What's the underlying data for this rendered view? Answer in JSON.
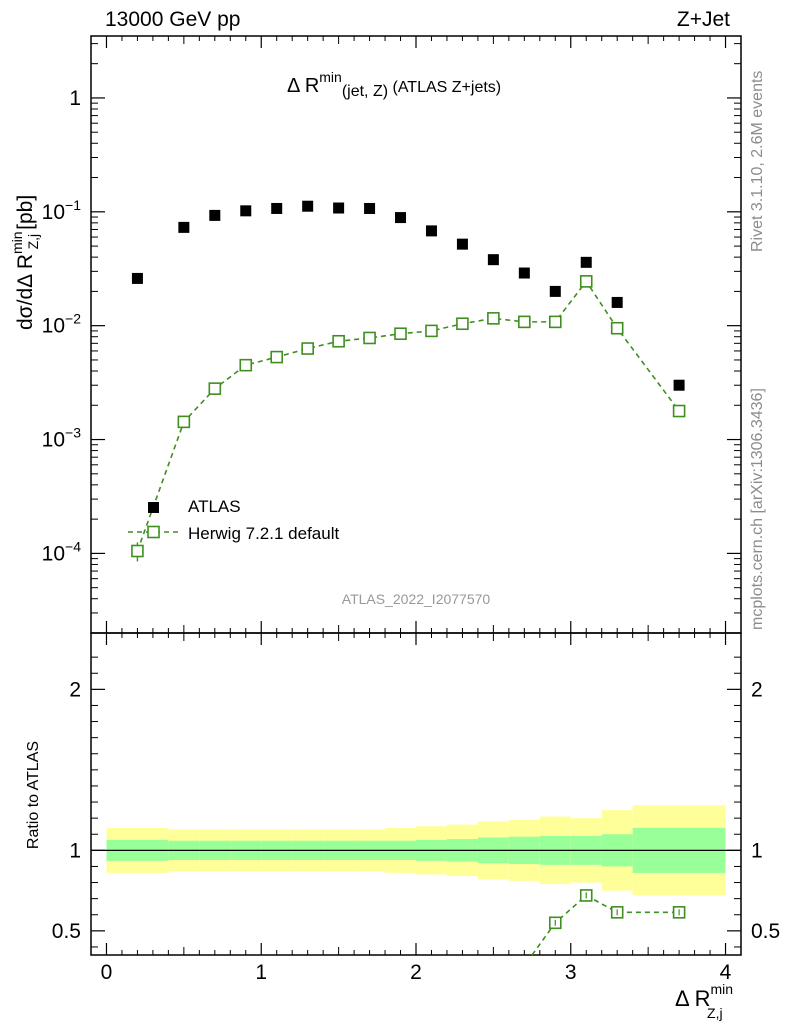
{
  "header": {
    "left_label": "13000 GeV pp",
    "right_label": "Z+Jet"
  },
  "plot": {
    "title_main": "Δ R",
    "title_sup": "min",
    "title_sub": "(jet, Z)",
    "title_rest": " (ATLAS Z+jets)",
    "analysis_id": "ATLAS_2022_I2077570",
    "y_axis_main_label": "dσ/dΔ R",
    "y_axis_main_sup": "min",
    "y_axis_main_sub": "Z,j",
    "y_axis_main_units": "[pb]",
    "y_axis_ratio_label": "Ratio to ATLAS",
    "x_axis_label_main": "Δ R",
    "x_axis_label_sup": "min",
    "x_axis_label_sub": "Z,j"
  },
  "sidebar": {
    "rivet_text": "Rivet 3.1.10,  2.6M events",
    "mcplots_text": "mcplots.cern.ch [arXiv:1306.3436]"
  },
  "legend": {
    "atlas_label": "ATLAS",
    "herwig_label": "Herwig 7.2.1 default"
  },
  "colors": {
    "atlas": "#000000",
    "herwig": "#3f8f1f",
    "band_inner": "#99ff99",
    "band_outer": "#ffff99",
    "axis": "#000000",
    "sidebar_text": "#8c8c8c"
  },
  "chart_data": [
    {
      "type": "scatter",
      "title": "Δ Rmin(jet, Z) (ATLAS Z+jets)",
      "xlabel": "Δ Rmin Z,j",
      "ylabel": "dσ/dΔ Rmin Z,j [pb]",
      "x_range": [
        -0.1,
        4.1
      ],
      "y_scale": "log",
      "y_range": [
        2e-05,
        3.5
      ],
      "x_ticks": [
        {
          "value": 0,
          "label": "0"
        },
        {
          "value": 1,
          "label": "1"
        },
        {
          "value": 2,
          "label": "2"
        },
        {
          "value": 3,
          "label": "3"
        },
        {
          "value": 4,
          "label": "4"
        }
      ],
      "y_ticks": [
        {
          "value": 0.0001,
          "base": "10",
          "exp": "−4"
        },
        {
          "value": 0.001,
          "base": "10",
          "exp": "−3"
        },
        {
          "value": 0.01,
          "base": "10",
          "exp": "−2"
        },
        {
          "value": 0.1,
          "base": "10",
          "exp": "−1"
        },
        {
          "value": 1,
          "base": "1",
          "exp": ""
        }
      ],
      "series": [
        {
          "name": "ATLAS",
          "marker": "filled-square",
          "x": [
            0.2,
            0.5,
            0.7,
            0.9,
            1.1,
            1.3,
            1.5,
            1.7,
            1.9,
            2.1,
            2.3,
            2.5,
            2.7,
            2.9,
            3.1,
            3.3,
            3.7
          ],
          "y": [
            0.026,
            0.073,
            0.093,
            0.102,
            0.107,
            0.112,
            0.108,
            0.107,
            0.089,
            0.068,
            0.052,
            0.038,
            0.029,
            0.02,
            0.036,
            0.016,
            0.003
          ]
        },
        {
          "name": "Herwig 7.2.1 default",
          "marker": "open-square",
          "line": "dashed",
          "x": [
            0.2,
            0.5,
            0.7,
            0.9,
            1.1,
            1.3,
            1.5,
            1.7,
            1.9,
            2.1,
            2.3,
            2.5,
            2.7,
            2.9,
            3.1,
            3.3,
            3.7
          ],
          "y": [
            0.000105,
            0.00143,
            0.0028,
            0.0045,
            0.0053,
            0.0063,
            0.0073,
            0.0078,
            0.0085,
            0.009,
            0.0104,
            0.0116,
            0.0108,
            0.0108,
            0.0245,
            0.0095,
            0.00178
          ],
          "yerr": [
            2e-05,
            8e-05,
            0.00012,
            0.00015,
            0.00015,
            0.00017,
            0.0002,
            0.0002,
            0.0002,
            0.0002,
            0.0003,
            0.0003,
            0.0003,
            0.0003,
            0.0008,
            0.0003,
            8e-05
          ]
        }
      ]
    },
    {
      "type": "line",
      "title": "Ratio to ATLAS",
      "xlabel": "Δ Rmin Z,j",
      "ylabel": "Ratio to ATLAS",
      "x_range": [
        -0.1,
        4.1
      ],
      "y_range": [
        0.35,
        2.35
      ],
      "x_ticks": [
        {
          "value": 0,
          "label": "0"
        },
        {
          "value": 1,
          "label": "1"
        },
        {
          "value": 2,
          "label": "2"
        },
        {
          "value": 3,
          "label": "3"
        },
        {
          "value": 4,
          "label": "4"
        }
      ],
      "y_ticks": [
        {
          "value": 0.5,
          "label": "0.5"
        },
        {
          "value": 1,
          "label": "1"
        },
        {
          "value": 2,
          "label": "2"
        }
      ],
      "bands": [
        {
          "xmin": 0.0,
          "xmax": 0.4,
          "inner": 0.065,
          "outer": 0.14
        },
        {
          "xmin": 0.4,
          "xmax": 0.6,
          "inner": 0.06,
          "outer": 0.13
        },
        {
          "xmin": 0.6,
          "xmax": 0.8,
          "inner": 0.06,
          "outer": 0.13
        },
        {
          "xmin": 0.8,
          "xmax": 1.0,
          "inner": 0.06,
          "outer": 0.13
        },
        {
          "xmin": 1.0,
          "xmax": 1.2,
          "inner": 0.06,
          "outer": 0.13
        },
        {
          "xmin": 1.2,
          "xmax": 1.4,
          "inner": 0.06,
          "outer": 0.13
        },
        {
          "xmin": 1.4,
          "xmax": 1.6,
          "inner": 0.06,
          "outer": 0.13
        },
        {
          "xmin": 1.6,
          "xmax": 1.8,
          "inner": 0.06,
          "outer": 0.13
        },
        {
          "xmin": 1.8,
          "xmax": 2.0,
          "inner": 0.06,
          "outer": 0.14
        },
        {
          "xmin": 2.0,
          "xmax": 2.2,
          "inner": 0.065,
          "outer": 0.15
        },
        {
          "xmin": 2.2,
          "xmax": 2.4,
          "inner": 0.07,
          "outer": 0.16
        },
        {
          "xmin": 2.4,
          "xmax": 2.6,
          "inner": 0.08,
          "outer": 0.18
        },
        {
          "xmin": 2.6,
          "xmax": 2.8,
          "inner": 0.085,
          "outer": 0.19
        },
        {
          "xmin": 2.8,
          "xmax": 3.0,
          "inner": 0.09,
          "outer": 0.21
        },
        {
          "xmin": 3.0,
          "xmax": 3.2,
          "inner": 0.09,
          "outer": 0.2
        },
        {
          "xmin": 3.2,
          "xmax": 3.4,
          "inner": 0.1,
          "outer": 0.25
        },
        {
          "xmin": 3.4,
          "xmax": 4.0,
          "inner": 0.14,
          "outer": 0.28
        }
      ],
      "series": [
        {
          "name": "Herwig 7.2.1 default",
          "marker": "open-square",
          "line": "dashed",
          "x": [
            2.9,
            3.1,
            3.3,
            3.7
          ],
          "y": [
            0.55,
            0.72,
            0.615,
            0.615
          ]
        }
      ]
    }
  ]
}
